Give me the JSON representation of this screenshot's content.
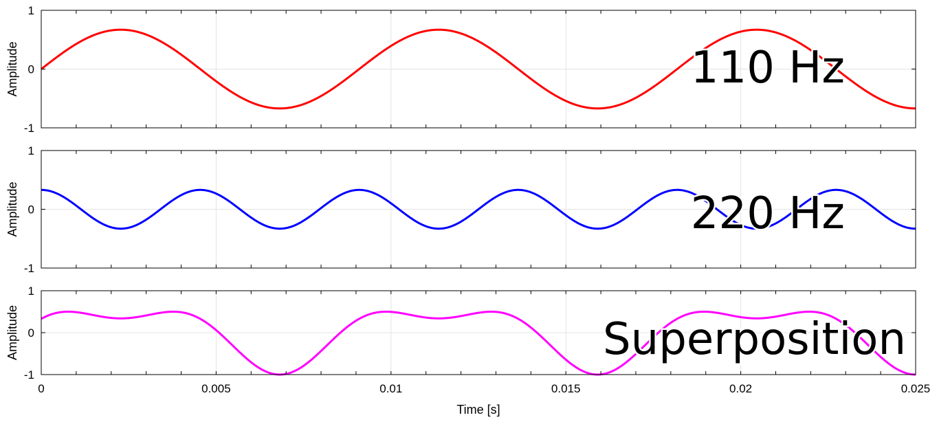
{
  "chart_data": [
    {
      "type": "line",
      "title": "110 Hz",
      "ylabel": "Amplitude",
      "xlabel": "",
      "xlim": [
        0,
        0.025
      ],
      "ylim": [
        -1,
        1
      ],
      "yticks": [
        "1",
        "0",
        "-1"
      ],
      "xticks_labeled": false,
      "grid": true,
      "series": [
        {
          "color": "#ff0000",
          "function": "sine",
          "frequency_hz": 110,
          "amplitude": 0.67,
          "phase_rad": 0,
          "offset": 0
        }
      ]
    },
    {
      "type": "line",
      "title": "220 Hz",
      "ylabel": "Amplitude",
      "xlabel": "",
      "xlim": [
        0,
        0.025
      ],
      "ylim": [
        -1,
        1
      ],
      "yticks": [
        "1",
        "0",
        "-1"
      ],
      "xticks_labeled": false,
      "grid": true,
      "series": [
        {
          "color": "#0000ff",
          "function": "cosine",
          "frequency_hz": 220,
          "amplitude": 0.33,
          "phase_rad": 0,
          "offset": 0
        }
      ]
    },
    {
      "type": "line",
      "title": "Superposition",
      "ylabel": "Amplitude",
      "xlabel": "Time [s]",
      "xlim": [
        0,
        0.025
      ],
      "ylim": [
        -1,
        1
      ],
      "yticks": [
        "1",
        "0",
        "-1"
      ],
      "xticks": [
        "0",
        "0.005",
        "0.01",
        "0.015",
        "0.02",
        "0.025"
      ],
      "xticks_labeled": true,
      "grid": true,
      "series": [
        {
          "color": "#ff00ff",
          "function": "sum",
          "components": [
            {
              "function": "sine",
              "frequency_hz": 110,
              "amplitude": 0.67
            },
            {
              "function": "cosine",
              "frequency_hz": 220,
              "amplitude": 0.33
            }
          ]
        }
      ]
    }
  ]
}
